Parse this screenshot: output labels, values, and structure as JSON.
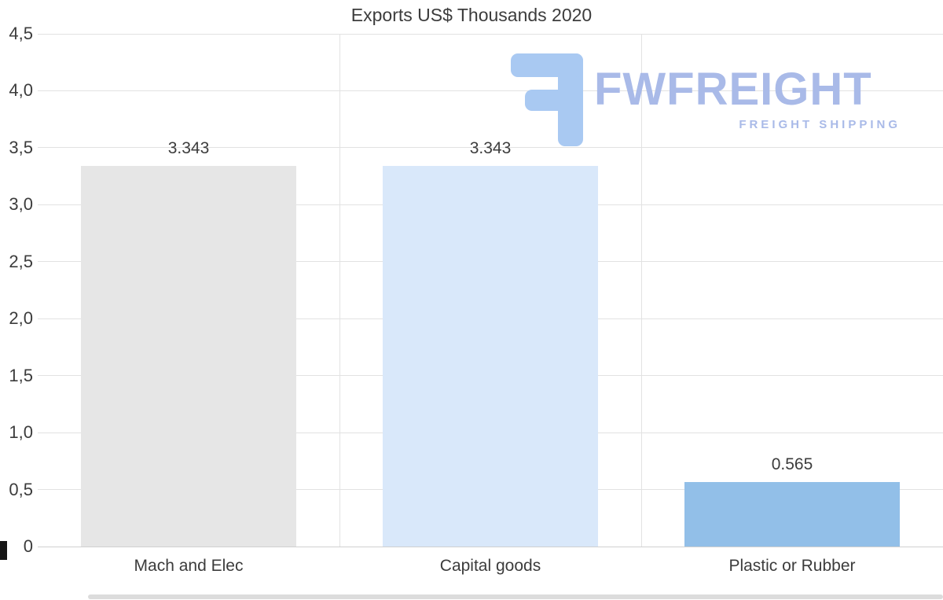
{
  "title": "Exports US$ Thousands 2020",
  "chart_data": {
    "type": "bar",
    "title": "Exports US$ Thousands 2020",
    "categories": [
      "Mach and Elec",
      "Capital goods",
      "Plastic or Rubber"
    ],
    "values": [
      3.343,
      3.343,
      0.565
    ],
    "value_labels": [
      "3.343",
      "3.343",
      "0.565"
    ],
    "bar_colors": [
      "#e6e6e6",
      "#d9e8fa",
      "#92bfe8"
    ],
    "xlabel": "",
    "ylabel": "",
    "ylim": [
      0,
      4.5
    ],
    "ytick_step": 0.5,
    "ytick_labels": [
      "0",
      "0,5",
      "1,0",
      "1,5",
      "2,0",
      "2,5",
      "3,0",
      "3,5",
      "4,0",
      "4,5"
    ],
    "grid": true,
    "legend": false
  },
  "watermark": {
    "brand": "FWFREIGHT",
    "tagline": "FREIGHT SHIPPING",
    "text_color": "#a9bae8",
    "glyph_color": "#a9c9f2"
  }
}
